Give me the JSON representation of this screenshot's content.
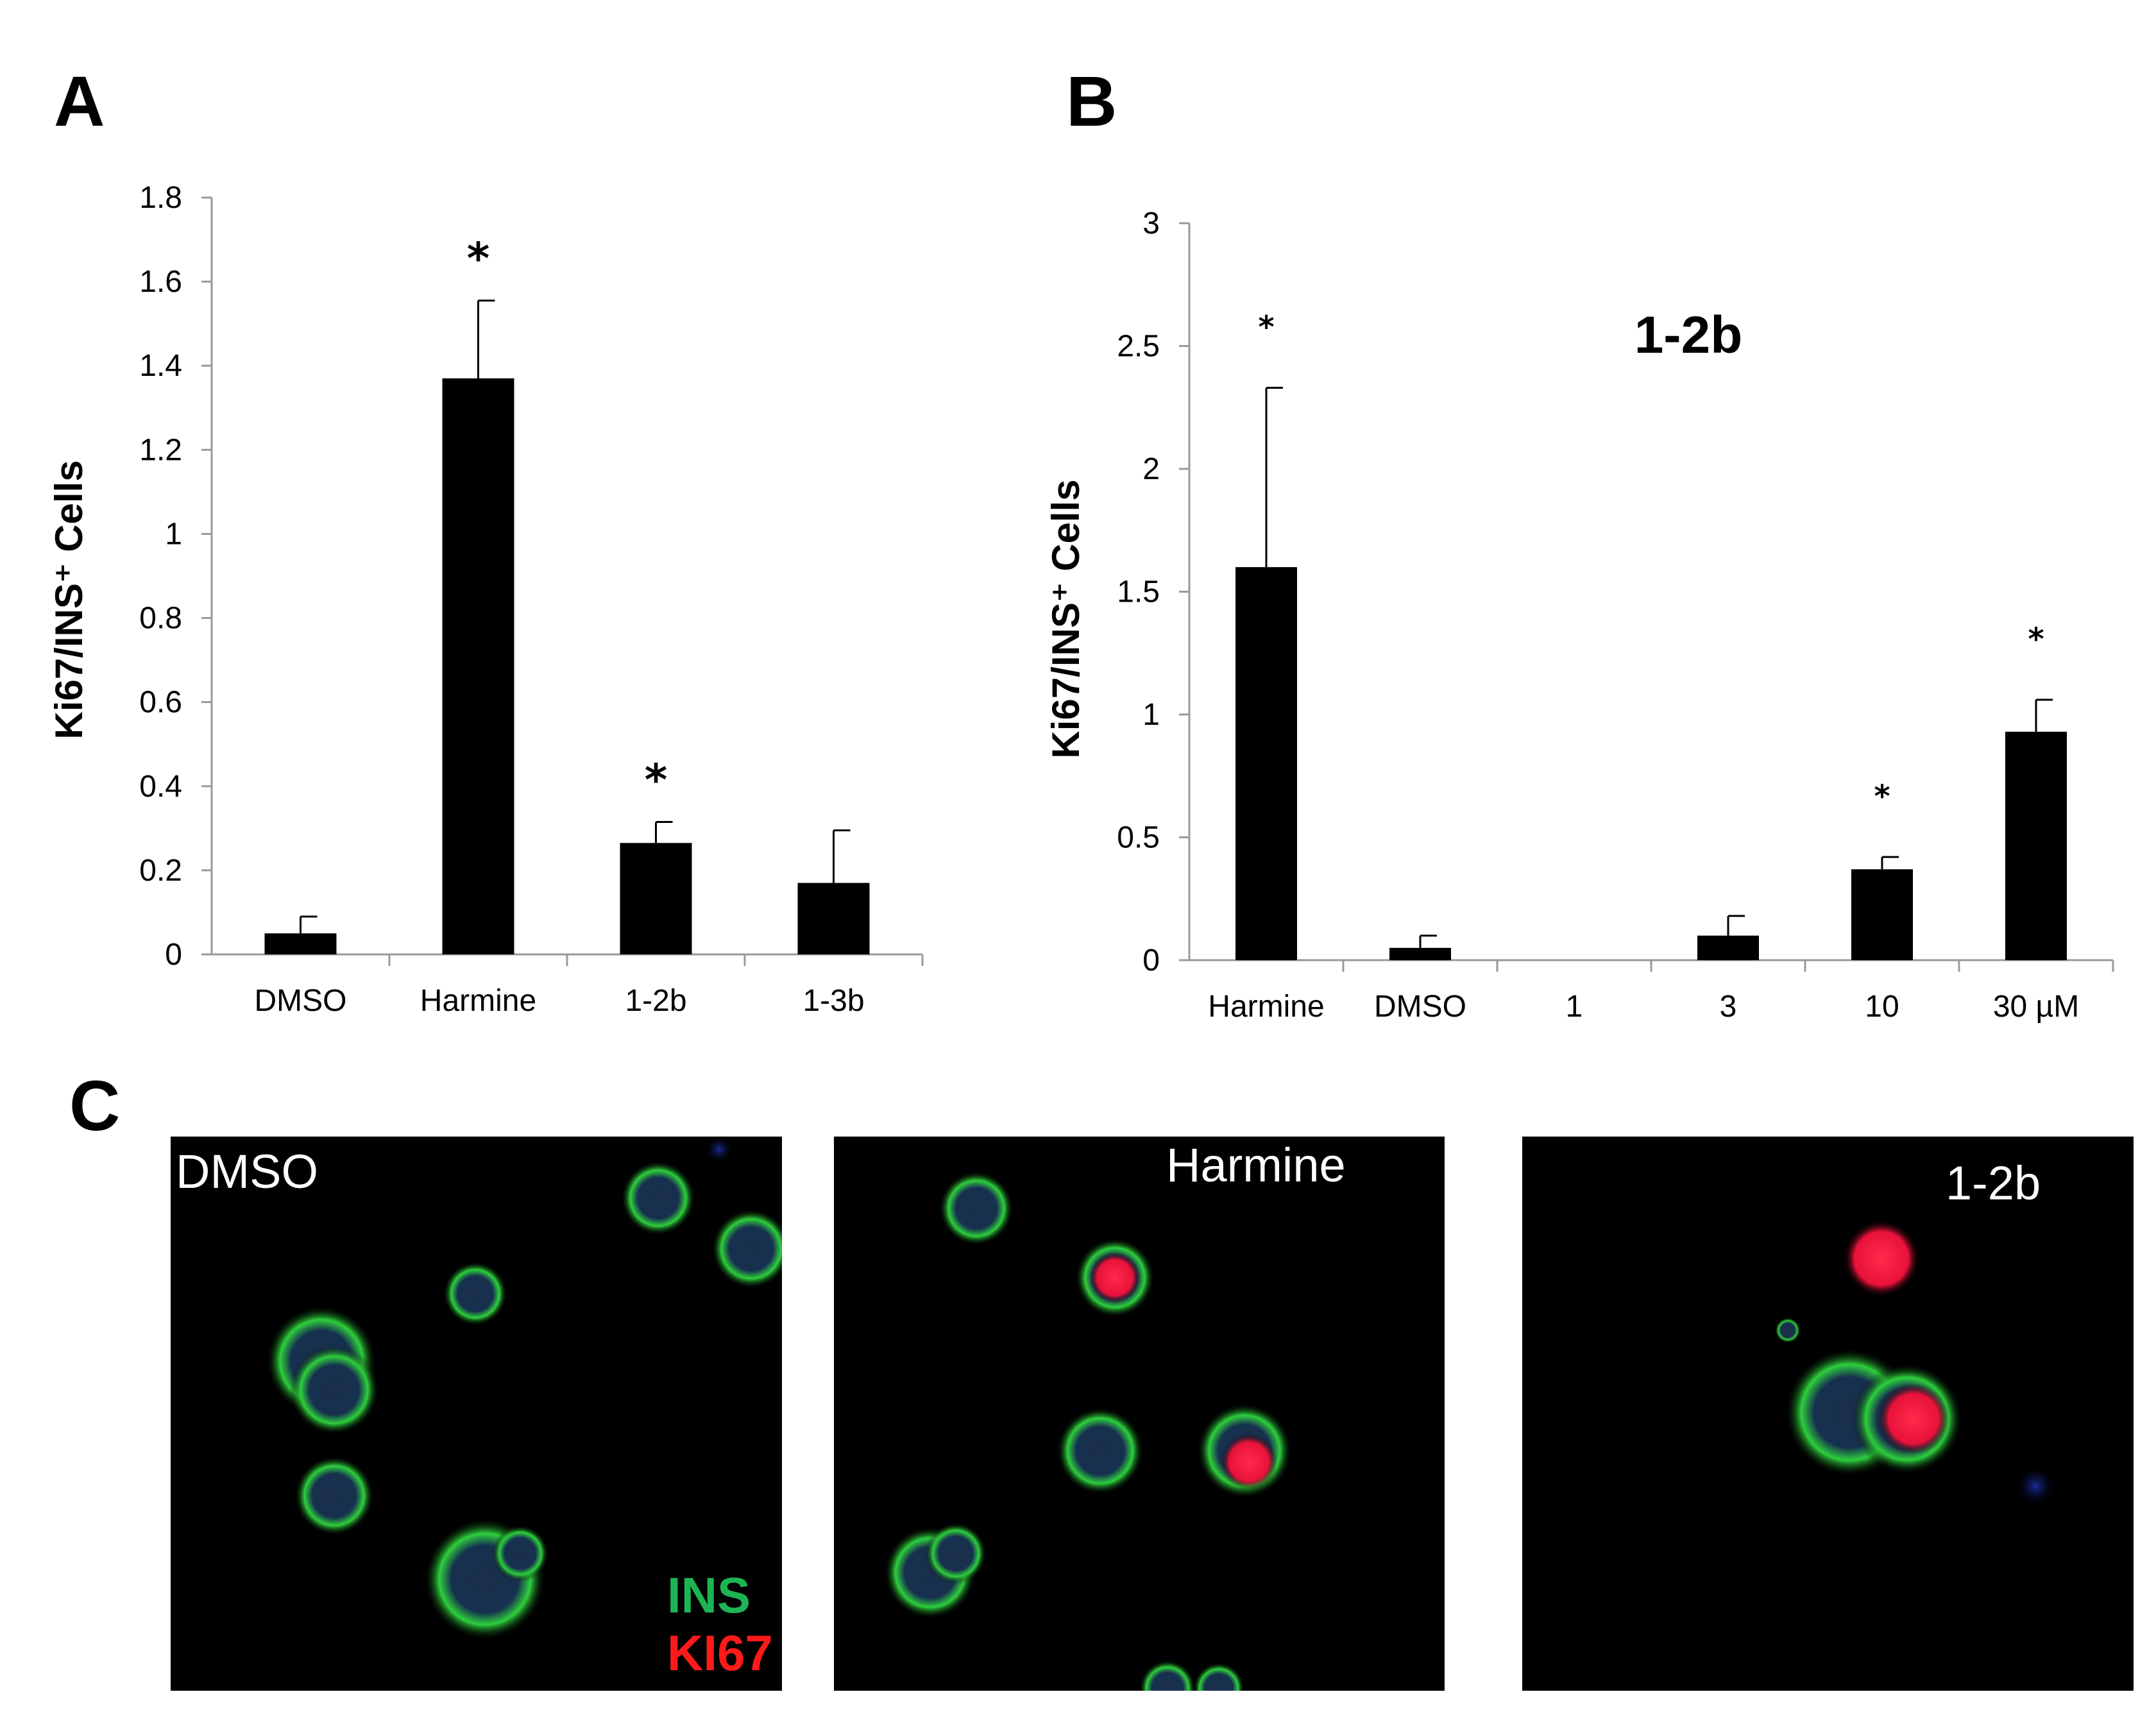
{
  "panels": {
    "a": "A",
    "b": "B",
    "c": "C"
  },
  "chart_data": [
    {
      "id": "A",
      "type": "bar",
      "title": "",
      "xlabel": "",
      "ylabel": "Ki67/INS⁺ Cells",
      "ylim": [
        0,
        1.8
      ],
      "yticks": [
        "0",
        "0.2",
        "0.4",
        "0.6",
        "0.8",
        "1",
        "1.2",
        "1.4",
        "1.6",
        "1.8"
      ],
      "categories": [
        "DMSO",
        "Harmine",
        "1-2b",
        "1-3b"
      ],
      "values": [
        0.05,
        1.37,
        0.265,
        0.17
      ],
      "error": [
        0.04,
        0.185,
        0.05,
        0.125
      ],
      "significance": [
        "",
        "*",
        "*",
        ""
      ],
      "color": "#000000",
      "grid": false
    },
    {
      "id": "B",
      "type": "bar",
      "title": "1-2b",
      "xlabel": "",
      "ylabel": "Ki67/INS⁺ Cells",
      "ylim": [
        0,
        3
      ],
      "yticks": [
        "0",
        "0.5",
        "1",
        "1.5",
        "2",
        "2.5",
        "3"
      ],
      "categories": [
        "Harmine",
        "DMSO",
        "1",
        "3",
        "10",
        "30 µM"
      ],
      "values": [
        1.6,
        0.05,
        0,
        0.1,
        0.37,
        0.93
      ],
      "error": [
        0.73,
        0.05,
        0,
        0.08,
        0.05,
        0.13
      ],
      "significance": [
        "*",
        "",
        "",
        "",
        "*",
        "*"
      ],
      "color": "#000000",
      "grid": false
    }
  ],
  "micrographs": [
    {
      "label": "DMSO"
    },
    {
      "label": "Harmine"
    },
    {
      "label": "1-2b"
    }
  ],
  "legend": {
    "ins": "INS",
    "ki67": "KI67",
    "ins_color": "#1db554",
    "ki67_color": "#ff1a1a"
  }
}
